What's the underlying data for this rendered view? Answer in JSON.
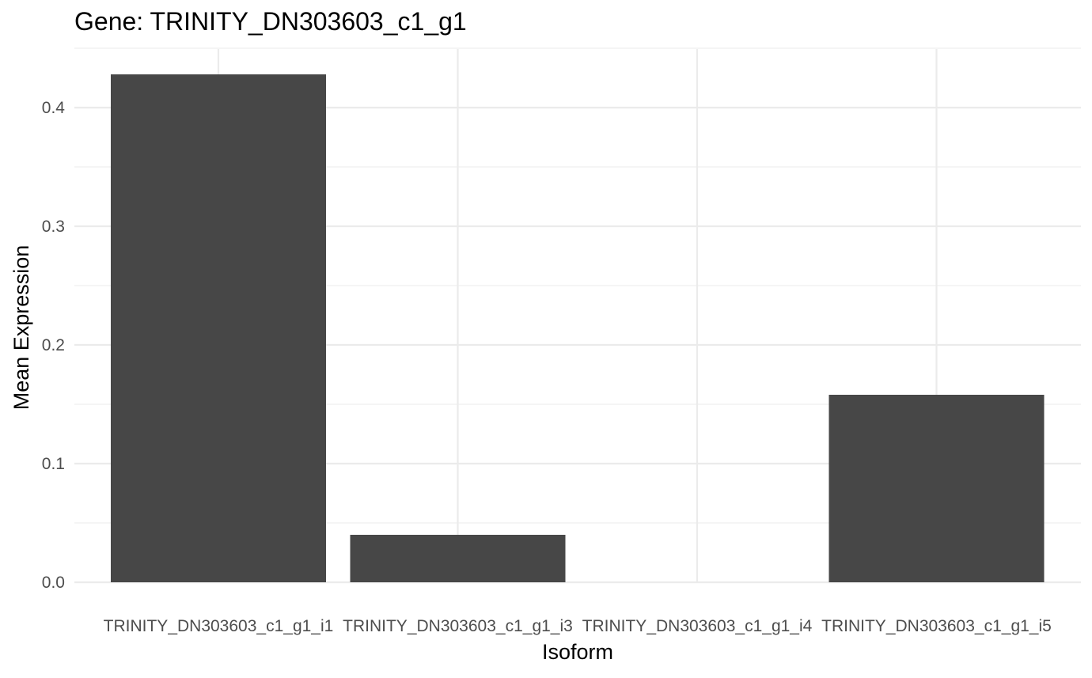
{
  "chart_data": {
    "type": "bar",
    "title": "Gene: TRINITY_DN303603_c1_g1",
    "xlabel": "Isoform",
    "ylabel": "Mean Expression",
    "categories": [
      "TRINITY_DN303603_c1_g1_i1",
      "TRINITY_DN303603_c1_g1_i3",
      "TRINITY_DN303603_c1_g1_i4",
      "TRINITY_DN303603_c1_g1_i5"
    ],
    "values": [
      0.428,
      0.04,
      0.0,
      0.158
    ],
    "ylim": [
      0,
      0.45
    ],
    "yticks": [
      "0.0",
      "0.1",
      "0.2",
      "0.3",
      "0.4"
    ],
    "grid": true,
    "legend": "none",
    "colors": {
      "bar": "#474747",
      "grid": "#ebebeb",
      "background": "#ffffff"
    }
  }
}
